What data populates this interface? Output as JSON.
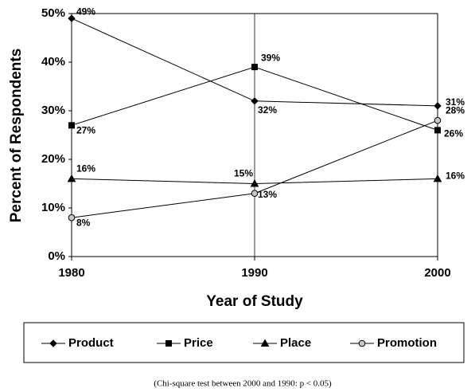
{
  "chart_data": {
    "type": "line",
    "xlabel": "Year of Study",
    "ylabel": "Percent of Respondents",
    "note": "(Chi-square test between 2000 and 1990: p < 0.05)",
    "x": [
      1980,
      1990,
      2000
    ],
    "xlim": [
      1980,
      2000
    ],
    "xticks": [
      1980,
      1990,
      2000
    ],
    "ylim": [
      0,
      50
    ],
    "yticks": [
      {
        "value": 0,
        "label": "0%"
      },
      {
        "value": 10,
        "label": "10%"
      },
      {
        "value": 20,
        "label": "20%"
      },
      {
        "value": 30,
        "label": "30%"
      },
      {
        "value": 40,
        "label": "40%"
      },
      {
        "value": 50,
        "label": "50%"
      }
    ],
    "xgrid": true,
    "ygrid": false,
    "legend": "bottom",
    "series": [
      {
        "name": "Product",
        "color": "#000000",
        "marker": "diamond",
        "marker_fill": "#000000",
        "values": [
          49,
          32,
          31
        ],
        "value_labels": [
          "49%",
          "32%",
          "31%"
        ]
      },
      {
        "name": "Price",
        "color": "#000000",
        "marker": "square",
        "marker_fill": "#000000",
        "values": [
          27,
          39,
          26
        ],
        "value_labels": [
          "27%",
          "39%",
          "26%"
        ]
      },
      {
        "name": "Place",
        "color": "#000000",
        "marker": "triangle",
        "marker_fill": "#000000",
        "values": [
          16,
          15,
          16
        ],
        "value_labels": [
          "16%",
          "15%",
          "16%"
        ]
      },
      {
        "name": "Promotion",
        "color": "#000000",
        "marker": "circle",
        "marker_fill": "#c8c8c8",
        "values": [
          8,
          13,
          28
        ],
        "value_labels": [
          "8%",
          "13%",
          "28%"
        ]
      }
    ]
  }
}
